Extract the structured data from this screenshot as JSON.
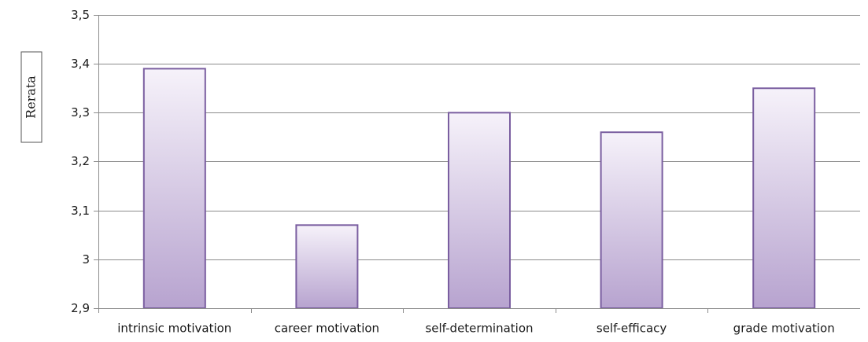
{
  "chart_data": {
    "type": "bar",
    "categories": [
      "intrinsic motivation",
      "career motivation",
      "self-determination",
      "self-efficacy",
      "grade motivation"
    ],
    "values": [
      3.39,
      3.07,
      3.3,
      3.26,
      3.35
    ],
    "ylabel": "Rerata",
    "ylim": [
      2.9,
      3.5
    ],
    "yticks": [
      2.9,
      3.0,
      3.1,
      3.2,
      3.3,
      3.4,
      3.5
    ],
    "ytick_labels": [
      "2,9",
      "3",
      "3,1",
      "3,2",
      "3,3",
      "3,4",
      "3,5"
    ],
    "grid": true,
    "bar_color": "#7a5ea0",
    "bar_fill_top": "#f6f2fa",
    "bar_fill_bottom": "#b7a3cf"
  }
}
